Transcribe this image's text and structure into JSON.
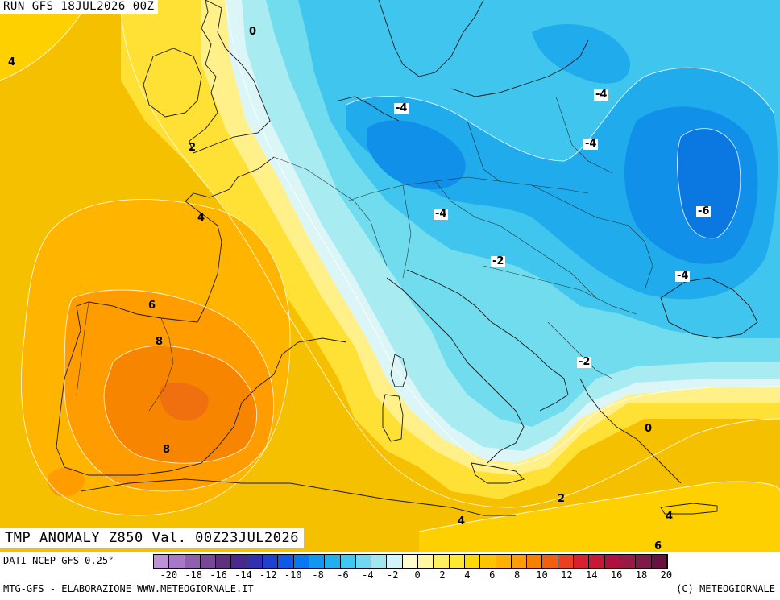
{
  "header": {
    "run_label": "RUN GFS 18JUL2026 00Z"
  },
  "map": {
    "title_label": "TMP ANOMALY Z850 Val. 00Z23JUL2026",
    "contour_labels": [
      {
        "id": "iso-0-channel",
        "text": "0",
        "boxed": false
      },
      {
        "id": "iso-4-atlantic",
        "text": "4",
        "boxed": false
      },
      {
        "id": "iso-2-brittany",
        "text": "2",
        "boxed": false
      },
      {
        "id": "iso-4-biscay",
        "text": "4",
        "boxed": false
      },
      {
        "id": "iso-6-spain",
        "text": "6",
        "boxed": false
      },
      {
        "id": "iso-8-spain-n",
        "text": "8",
        "boxed": false
      },
      {
        "id": "iso-8-spain-s",
        "text": "8",
        "boxed": false
      },
      {
        "id": "iso-m4-northsea",
        "text": "-4",
        "boxed": true
      },
      {
        "id": "iso-m4-baltic",
        "text": "-4",
        "boxed": true
      },
      {
        "id": "iso-m4-lithuania",
        "text": "-4",
        "boxed": true
      },
      {
        "id": "iso-m4-germany",
        "text": "-4",
        "boxed": true
      },
      {
        "id": "iso-m6-ukraine",
        "text": "-6",
        "boxed": true
      },
      {
        "id": "iso-m4-romania",
        "text": "-4",
        "boxed": true
      },
      {
        "id": "iso-m2-alps",
        "text": "-2",
        "boxed": true
      },
      {
        "id": "iso-m2-balkans",
        "text": "-2",
        "boxed": true
      },
      {
        "id": "iso-0-greece",
        "text": "0",
        "boxed": false
      },
      {
        "id": "iso-2-sicily",
        "text": "2",
        "boxed": false
      },
      {
        "id": "iso-4-libya",
        "text": "4",
        "boxed": false
      },
      {
        "id": "iso-4-crete",
        "text": "4",
        "boxed": false
      },
      {
        "id": "iso-6-egypt",
        "text": "6",
        "boxed": false
      }
    ]
  },
  "legend": {
    "source_label": "DATI NCEP GFS 0.25°",
    "credit_label": "MTG-GFS - ELABORAZIONE WWW.METEOGIORNALE.IT",
    "copyright_label": "(C) METEOGIORNALE",
    "colors": [
      "#c090d8",
      "#a878c8",
      "#9060b0",
      "#784898",
      "#603080",
      "#4a2890",
      "#3030b0",
      "#2040d0",
      "#1058e8",
      "#0878f0",
      "#1098f0",
      "#20b0f0",
      "#40c8f0",
      "#70d8f0",
      "#a0e8f0",
      "#d0f4f8",
      "#fffcd0",
      "#fff8a0",
      "#fff060",
      "#ffe830",
      "#ffd800",
      "#ffc400",
      "#ffb000",
      "#ff9c00",
      "#f88000",
      "#f06010",
      "#e84020",
      "#d82030",
      "#c81838",
      "#b01040",
      "#981848",
      "#801848",
      "#681040"
    ],
    "ticks": [
      "-20",
      "-18",
      "-16",
      "-14",
      "-12",
      "-10",
      "-8",
      "-6",
      "-4",
      "-2",
      "0",
      "2",
      "4",
      "6",
      "8",
      "10",
      "12",
      "14",
      "16",
      "18",
      "20"
    ]
  }
}
